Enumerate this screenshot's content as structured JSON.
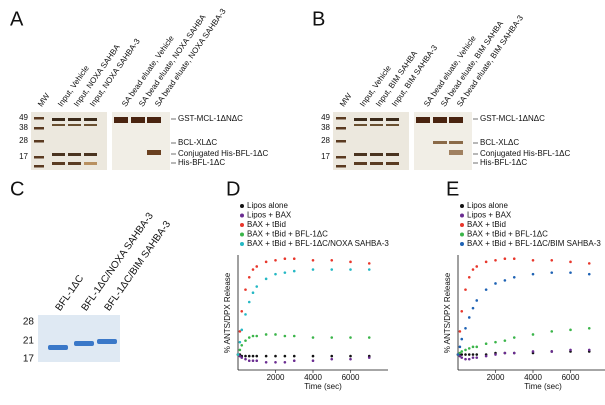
{
  "panels": [
    {
      "label": "A",
      "lanes": [
        "MW",
        "Input, Vehicle",
        "Input, NOXA SAHBA",
        "Input, NOXA SAHBA-3",
        "SA bead eluate, Vehicle",
        "SA bead eluate, NOXA SAHBA",
        "SA bead eluate, NOXA SAHBA-3"
      ],
      "mw_markers": [
        "49",
        "38",
        "28",
        "17"
      ],
      "band_labels": [
        "GST-MCL-1ΔNΔC",
        "BCL-XLΔC",
        "Conjugated His-BFL-1ΔC",
        "His-BFL-1ΔC"
      ]
    },
    {
      "label": "B",
      "lanes": [
        "MW",
        "Input, Vehicle",
        "Input, BIM SAHBA",
        "Input, BIM SAHBA-3",
        "SA bead eluate, Vehicle",
        "SA bead eluate, BIM SAHBA",
        "SA bead eluate, BIM SAHBA-3"
      ],
      "mw_markers": [
        "49",
        "38",
        "28",
        "17"
      ],
      "band_labels": [
        "GST-MCL-1ΔNΔC",
        "BCL-XLΔC",
        "Conjugated His-BFL-1ΔC",
        "His-BFL-1ΔC"
      ]
    },
    {
      "label": "C",
      "lanes": [
        "BFL-1ΔC",
        "BFL-1ΔC/NOXA SAHBA-3",
        "BFL-1ΔC/BIM SAHBA-3"
      ],
      "mw_markers": [
        "28",
        "21",
        "17"
      ]
    }
  ],
  "chart_data": [
    {
      "type": "scatter",
      "panel_label": "D",
      "y_label": "% ANTS/DPX Release",
      "x_label": "Time (sec)",
      "x": [
        0,
        100,
        200,
        400,
        600,
        800,
        1000,
        1500,
        2000,
        2500,
        3000,
        4000,
        5000,
        6000,
        7000
      ],
      "xlim": [
        0,
        8000
      ],
      "xticks": [
        2000,
        4000,
        6000
      ],
      "ylim": [
        -10,
        100
      ],
      "series": [
        {
          "name": "Lipos alone",
          "color": "#111111",
          "values": [
            0,
            0,
            -1,
            -1,
            -1,
            -1,
            -1,
            -1,
            -1,
            -1,
            -1,
            -1,
            -1,
            -1,
            -1
          ]
        },
        {
          "name": "Lipos + BAX",
          "color": "#6a2c91",
          "values": [
            0,
            -1,
            -2,
            -3,
            -4,
            -4,
            -4,
            -5,
            -5,
            -5,
            -4,
            -4,
            -3,
            -3,
            -2
          ]
        },
        {
          "name": "BAX + tBid",
          "color": "#e8372c",
          "values": [
            0,
            15,
            28,
            42,
            50,
            55,
            57,
            60,
            61,
            62,
            62,
            61,
            61,
            60,
            59
          ]
        },
        {
          "name": "BAX + tBid + BFL-1ΔC",
          "color": "#3bb54a",
          "values": [
            0,
            3,
            6,
            9,
            11,
            12,
            12,
            13,
            13,
            12,
            12,
            11,
            11,
            11,
            11
          ]
        },
        {
          "name": "BAX + tBid + BFL-1ΔC/NOXA SAHBA-3",
          "color": "#25b8c4",
          "values": [
            0,
            8,
            16,
            26,
            34,
            40,
            44,
            49,
            52,
            53,
            54,
            55,
            55,
            55,
            55
          ]
        }
      ]
    },
    {
      "type": "scatter",
      "panel_label": "E",
      "y_label": "% ANTS/DPX Release",
      "x_label": "Time (sec)",
      "x": [
        0,
        100,
        200,
        400,
        600,
        800,
        1000,
        1500,
        2000,
        2500,
        3000,
        4000,
        5000,
        6000,
        7000
      ],
      "xlim": [
        0,
        8000
      ],
      "xticks": [
        2000,
        4000,
        6000
      ],
      "ylim": [
        -10,
        100
      ],
      "series": [
        {
          "name": "Lipos alone",
          "color": "#111111",
          "values": [
            0,
            0,
            0,
            0,
            0,
            0,
            0,
            0,
            1,
            1,
            1,
            1,
            2,
            2,
            2
          ]
        },
        {
          "name": "Lipos + BAX",
          "color": "#6a2c91",
          "values": [
            0,
            -1,
            -2,
            -3,
            -3,
            -2,
            -2,
            -1,
            0,
            1,
            1,
            2,
            2,
            3,
            3
          ]
        },
        {
          "name": "BAX + tBid",
          "color": "#e8372c",
          "values": [
            0,
            15,
            28,
            42,
            50,
            55,
            57,
            60,
            61,
            62,
            62,
            61,
            61,
            60,
            59
          ]
        },
        {
          "name": "BAX + tBid + BFL-1ΔC",
          "color": "#3bb54a",
          "values": [
            0,
            1,
            2,
            3,
            4,
            5,
            5,
            7,
            8,
            9,
            11,
            13,
            15,
            16,
            17
          ]
        },
        {
          "name": "BAX + tBid + BFL-1ΔC/BIM SAHBA-3",
          "color": "#1e62b4",
          "values": [
            0,
            5,
            10,
            17,
            24,
            30,
            35,
            42,
            46,
            48,
            50,
            52,
            53,
            53,
            52
          ]
        }
      ]
    }
  ]
}
